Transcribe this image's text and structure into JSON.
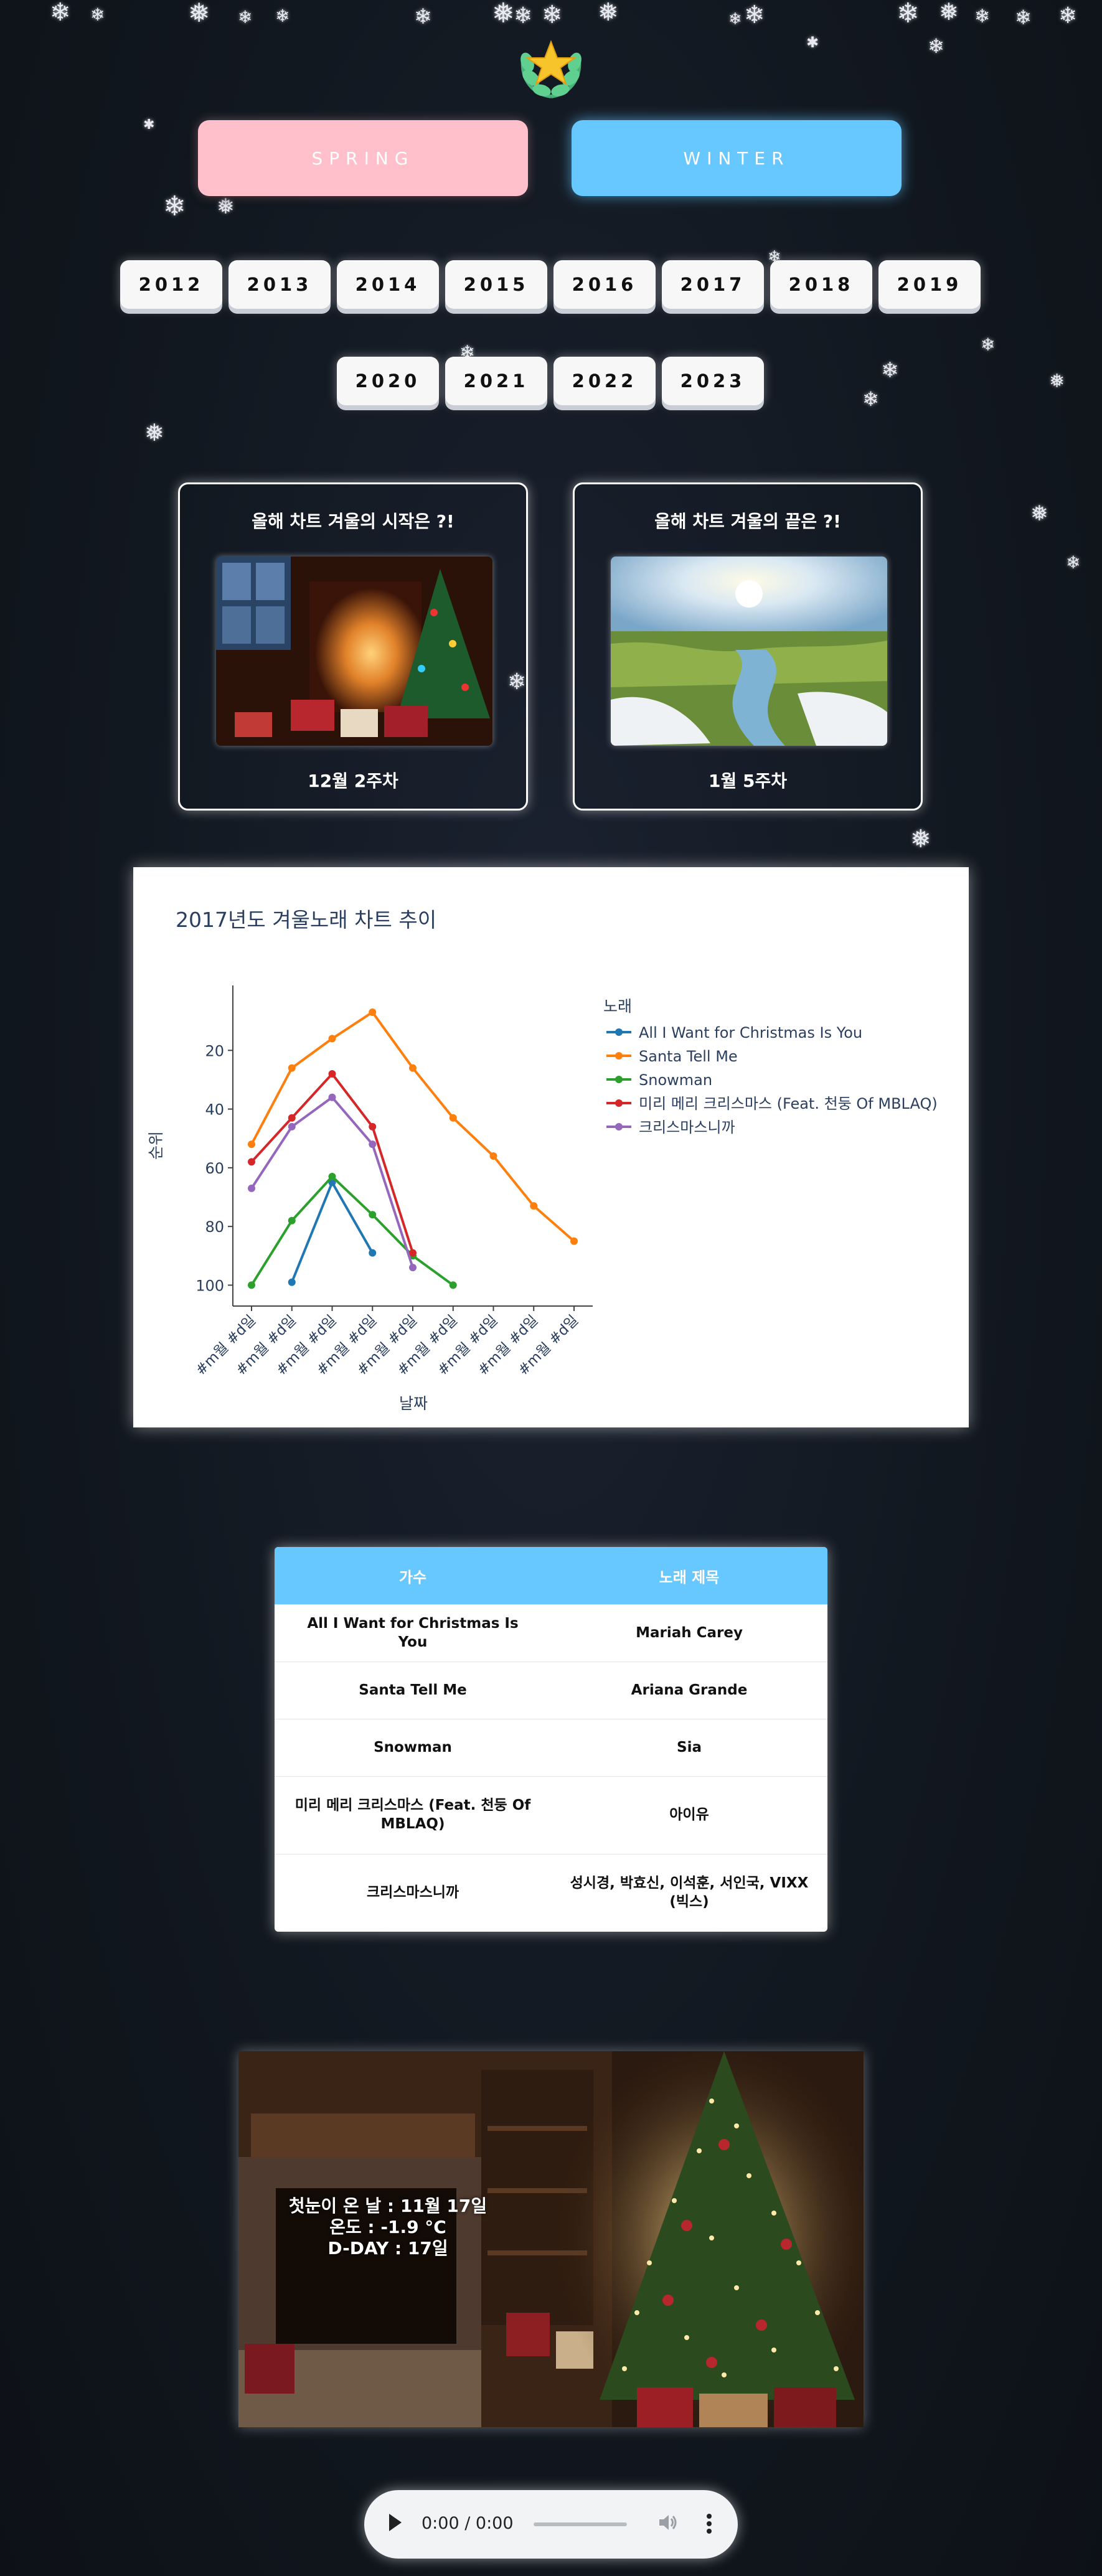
{
  "seasons": {
    "spring": "SPRING",
    "winter": "WINTER"
  },
  "years_row1": [
    "2012",
    "2013",
    "2014",
    "2015",
    "2016",
    "2017",
    "2018",
    "2019"
  ],
  "years_row2": [
    "2020",
    "2021",
    "2022",
    "2023"
  ],
  "cards": [
    {
      "title": "올해 차트 겨울의 시작은 ?!",
      "footer": "12월 2주차"
    },
    {
      "title": "올해 차트 겨울의 끝은 ?!",
      "footer": "1월 5주차"
    }
  ],
  "chart_data": {
    "type": "line",
    "title": "2017년도 겨울노래 차트 추이",
    "xlabel": "날짜",
    "ylabel": "순위",
    "y_reversed": true,
    "ylim": [
      0,
      105
    ],
    "y_ticks": [
      20,
      40,
      60,
      80,
      100
    ],
    "categories": [
      "#m월 #d일",
      "#m월 #d일",
      "#m월 #d일",
      "#m월 #d일",
      "#m월 #d일",
      "#m월 #d일",
      "#m월 #d일",
      "#m월 #d일",
      "#m월 #d일"
    ],
    "legend_title": "노래",
    "legend_position": "right",
    "series": [
      {
        "name": "All I Want for Christmas Is You",
        "color": "#1f77b4",
        "values": [
          null,
          99,
          65,
          89,
          null,
          null,
          null,
          null,
          null
        ]
      },
      {
        "name": "Santa Tell Me",
        "color": "#ff7f0e",
        "values": [
          52,
          26,
          16,
          7,
          26,
          43,
          56,
          73,
          85
        ]
      },
      {
        "name": "Snowman",
        "color": "#2ca02c",
        "values": [
          100,
          78,
          63,
          76,
          90,
          100,
          null,
          null,
          null
        ]
      },
      {
        "name": "미리 메리 크리스마스 (Feat. 천둥 Of MBLAQ)",
        "color": "#d62728",
        "values": [
          58,
          43,
          28,
          46,
          89,
          null,
          null,
          null,
          null
        ]
      },
      {
        "name": "크리스마스니까",
        "color": "#9467bd",
        "values": [
          67,
          46,
          36,
          52,
          94,
          null,
          null,
          null,
          null
        ]
      }
    ]
  },
  "table": {
    "headers": [
      "가수",
      "노래 제목"
    ],
    "rows": [
      [
        "All I Want for Christmas Is You",
        "Mariah Carey"
      ],
      [
        "Santa Tell Me",
        "Ariana Grande"
      ],
      [
        "Snowman",
        "Sia"
      ],
      [
        "미리 메리 크리스마스 (Feat. 천둥 Of MBLAQ)",
        "아이유"
      ],
      [
        "크리스마스니까",
        "성시경, 박효신, 이석훈, 서인국, VIXX (빅스)"
      ]
    ]
  },
  "snow_info": {
    "line1": "첫눈이 온 날 : 11월 17일",
    "line2": "온도 : -1.9 °C",
    "line3": "D-DAY : 17일"
  },
  "audio": {
    "time": "0:00 / 0:00"
  }
}
